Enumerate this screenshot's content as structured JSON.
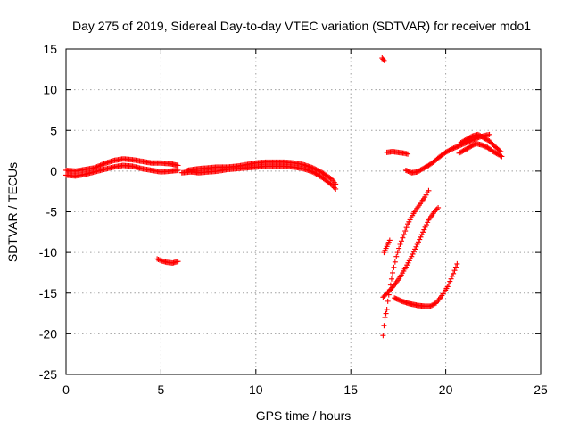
{
  "chart_data": {
    "type": "scatter",
    "title": "Day 275 of 2019, Sidereal Day-to-day VTEC variation (SDTVAR) for receiver mdo1",
    "xlabel": "GPS time / hours",
    "ylabel": "SDTVAR / TECUs",
    "xlim": [
      0,
      25
    ],
    "ylim": [
      -25,
      15
    ],
    "xticks": [
      "0",
      "5",
      "10",
      "15",
      "20",
      "25"
    ],
    "yticks": [
      "15",
      "10",
      "5",
      "0",
      "-5",
      "-10",
      "-15",
      "-20",
      "-25"
    ],
    "grid": true,
    "series": [
      {
        "color": "#ff0000",
        "marker": "plus",
        "tracks": [
          [
            [
              0.0,
              -0.5
            ],
            [
              0.5,
              -0.6
            ],
            [
              1.0,
              -0.4
            ],
            [
              1.5,
              -0.1
            ],
            [
              2.0,
              0.2
            ],
            [
              2.5,
              0.5
            ],
            [
              3.0,
              0.7
            ],
            [
              3.5,
              0.6
            ],
            [
              4.0,
              0.3
            ],
            [
              4.5,
              0.1
            ],
            [
              5.0,
              -0.1
            ],
            [
              5.5,
              0.0
            ],
            [
              5.9,
              0.1
            ]
          ],
          [
            [
              0.0,
              0.1
            ],
            [
              0.5,
              0.0
            ],
            [
              1.0,
              0.2
            ],
            [
              1.5,
              0.4
            ],
            [
              2.0,
              0.9
            ],
            [
              2.5,
              1.3
            ],
            [
              3.0,
              1.5
            ],
            [
              3.5,
              1.4
            ],
            [
              4.0,
              1.2
            ],
            [
              4.5,
              1.0
            ],
            [
              5.0,
              1.0
            ],
            [
              5.5,
              0.9
            ],
            [
              5.9,
              0.7
            ]
          ],
          [
            [
              6.1,
              -0.2
            ],
            [
              6.6,
              -0.1
            ],
            [
              7.0,
              -0.2
            ],
            [
              7.5,
              -0.1
            ],
            [
              8.0,
              0.0
            ],
            [
              8.5,
              0.2
            ],
            [
              9.0,
              0.3
            ],
            [
              9.5,
              0.4
            ],
            [
              10.0,
              0.5
            ],
            [
              10.5,
              0.6
            ],
            [
              11.0,
              0.6
            ],
            [
              11.5,
              0.6
            ],
            [
              12.0,
              0.5
            ],
            [
              12.5,
              0.3
            ],
            [
              13.0,
              -0.1
            ],
            [
              13.5,
              -0.8
            ],
            [
              14.0,
              -1.7
            ],
            [
              14.2,
              -2.2
            ]
          ],
          [
            [
              6.4,
              0.1
            ],
            [
              7.0,
              0.3
            ],
            [
              7.5,
              0.4
            ],
            [
              8.0,
              0.5
            ],
            [
              8.5,
              0.5
            ],
            [
              9.0,
              0.6
            ],
            [
              9.5,
              0.8
            ],
            [
              10.0,
              1.0
            ],
            [
              10.5,
              1.1
            ],
            [
              11.0,
              1.1
            ],
            [
              11.5,
              1.1
            ],
            [
              12.0,
              1.0
            ],
            [
              12.5,
              0.8
            ],
            [
              13.0,
              0.4
            ],
            [
              13.5,
              -0.2
            ],
            [
              14.0,
              -1.0
            ],
            [
              14.2,
              -1.6
            ]
          ],
          [
            [
              4.8,
              -10.8
            ],
            [
              5.0,
              -11.0
            ],
            [
              5.3,
              -11.2
            ],
            [
              5.6,
              -11.3
            ],
            [
              5.9,
              -11.1
            ]
          ],
          [
            [
              16.65,
              13.9
            ],
            [
              16.75,
              13.6
            ]
          ],
          [
            [
              16.7,
              -20.2
            ],
            [
              16.75,
              -19.0
            ],
            [
              16.8,
              -18.0
            ],
            [
              16.9,
              -17.0
            ],
            [
              16.95,
              -16.0
            ],
            [
              17.0,
              -15.2
            ],
            [
              17.1,
              -14.0
            ],
            [
              17.2,
              -12.5
            ],
            [
              17.4,
              -10.5
            ],
            [
              17.6,
              -9.0
            ],
            [
              17.8,
              -7.8
            ],
            [
              18.0,
              -6.5
            ],
            [
              18.3,
              -5.2
            ],
            [
              18.6,
              -4.2
            ],
            [
              18.9,
              -3.2
            ],
            [
              19.1,
              -2.4
            ]
          ],
          [
            [
              16.7,
              -15.5
            ],
            [
              17.0,
              -14.8
            ],
            [
              17.3,
              -14.0
            ],
            [
              17.6,
              -13.0
            ],
            [
              17.9,
              -11.8
            ],
            [
              18.2,
              -10.5
            ],
            [
              18.5,
              -9.0
            ],
            [
              18.8,
              -7.5
            ],
            [
              19.1,
              -6.0
            ],
            [
              19.4,
              -5.0
            ],
            [
              19.6,
              -4.5
            ]
          ],
          [
            [
              16.75,
              -10.0
            ],
            [
              16.85,
              -9.5
            ],
            [
              16.95,
              -9.0
            ],
            [
              17.05,
              -8.5
            ]
          ],
          [
            [
              17.3,
              -15.6
            ],
            [
              17.7,
              -16.0
            ],
            [
              18.1,
              -16.3
            ],
            [
              18.5,
              -16.5
            ],
            [
              18.9,
              -16.6
            ],
            [
              19.2,
              -16.6
            ],
            [
              19.5,
              -16.2
            ],
            [
              19.8,
              -15.3
            ],
            [
              20.1,
              -14.2
            ],
            [
              20.4,
              -12.6
            ],
            [
              20.6,
              -11.4
            ]
          ],
          [
            [
              16.9,
              2.3
            ],
            [
              17.2,
              2.4
            ],
            [
              17.5,
              2.3
            ],
            [
              17.8,
              2.2
            ],
            [
              18.0,
              2.1
            ]
          ],
          [
            [
              17.9,
              0.1
            ],
            [
              18.2,
              -0.2
            ],
            [
              18.5,
              -0.1
            ],
            [
              18.8,
              0.3
            ],
            [
              19.1,
              0.7
            ],
            [
              19.4,
              1.2
            ],
            [
              19.7,
              1.8
            ],
            [
              20.0,
              2.3
            ],
            [
              20.3,
              2.7
            ],
            [
              20.6,
              3.0
            ],
            [
              20.9,
              3.3
            ],
            [
              21.2,
              3.6
            ],
            [
              21.5,
              3.9
            ],
            [
              21.8,
              4.2
            ],
            [
              22.1,
              4.4
            ],
            [
              22.3,
              4.5
            ]
          ],
          [
            [
              20.7,
              2.2
            ],
            [
              21.0,
              2.6
            ],
            [
              21.3,
              3.0
            ],
            [
              21.6,
              3.4
            ],
            [
              21.9,
              3.2
            ],
            [
              22.2,
              2.9
            ],
            [
              22.5,
              2.4
            ],
            [
              22.8,
              2.0
            ],
            [
              22.95,
              1.8
            ]
          ],
          [
            [
              20.8,
              3.5
            ],
            [
              21.1,
              3.9
            ],
            [
              21.4,
              4.3
            ],
            [
              21.7,
              4.5
            ],
            [
              22.0,
              4.1
            ],
            [
              22.3,
              3.7
            ],
            [
              22.6,
              3.0
            ],
            [
              22.9,
              2.4
            ]
          ]
        ]
      }
    ]
  }
}
